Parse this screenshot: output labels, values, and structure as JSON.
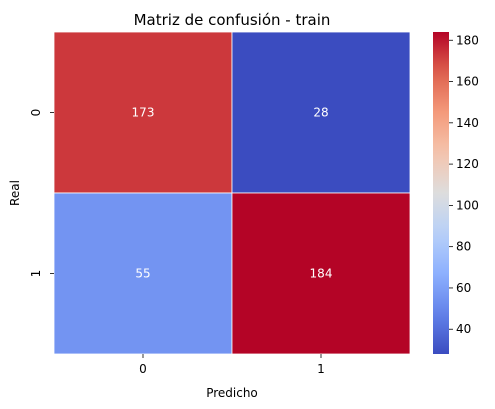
{
  "chart_data": {
    "type": "heatmap",
    "title": "Matriz de confusión - train",
    "xlabel": "Predicho",
    "ylabel": "Real",
    "x_ticks": [
      "0",
      "1"
    ],
    "y_ticks": [
      "0",
      "1"
    ],
    "values": [
      [
        173,
        28
      ],
      [
        55,
        184
      ]
    ],
    "colormap": "coolwarm",
    "colorbar": {
      "min": 28,
      "max": 184,
      "ticks": [
        "40",
        "60",
        "80",
        "100",
        "120",
        "140",
        "160",
        "180"
      ]
    },
    "annotated": true,
    "grid_line_color": "#ffffff"
  }
}
